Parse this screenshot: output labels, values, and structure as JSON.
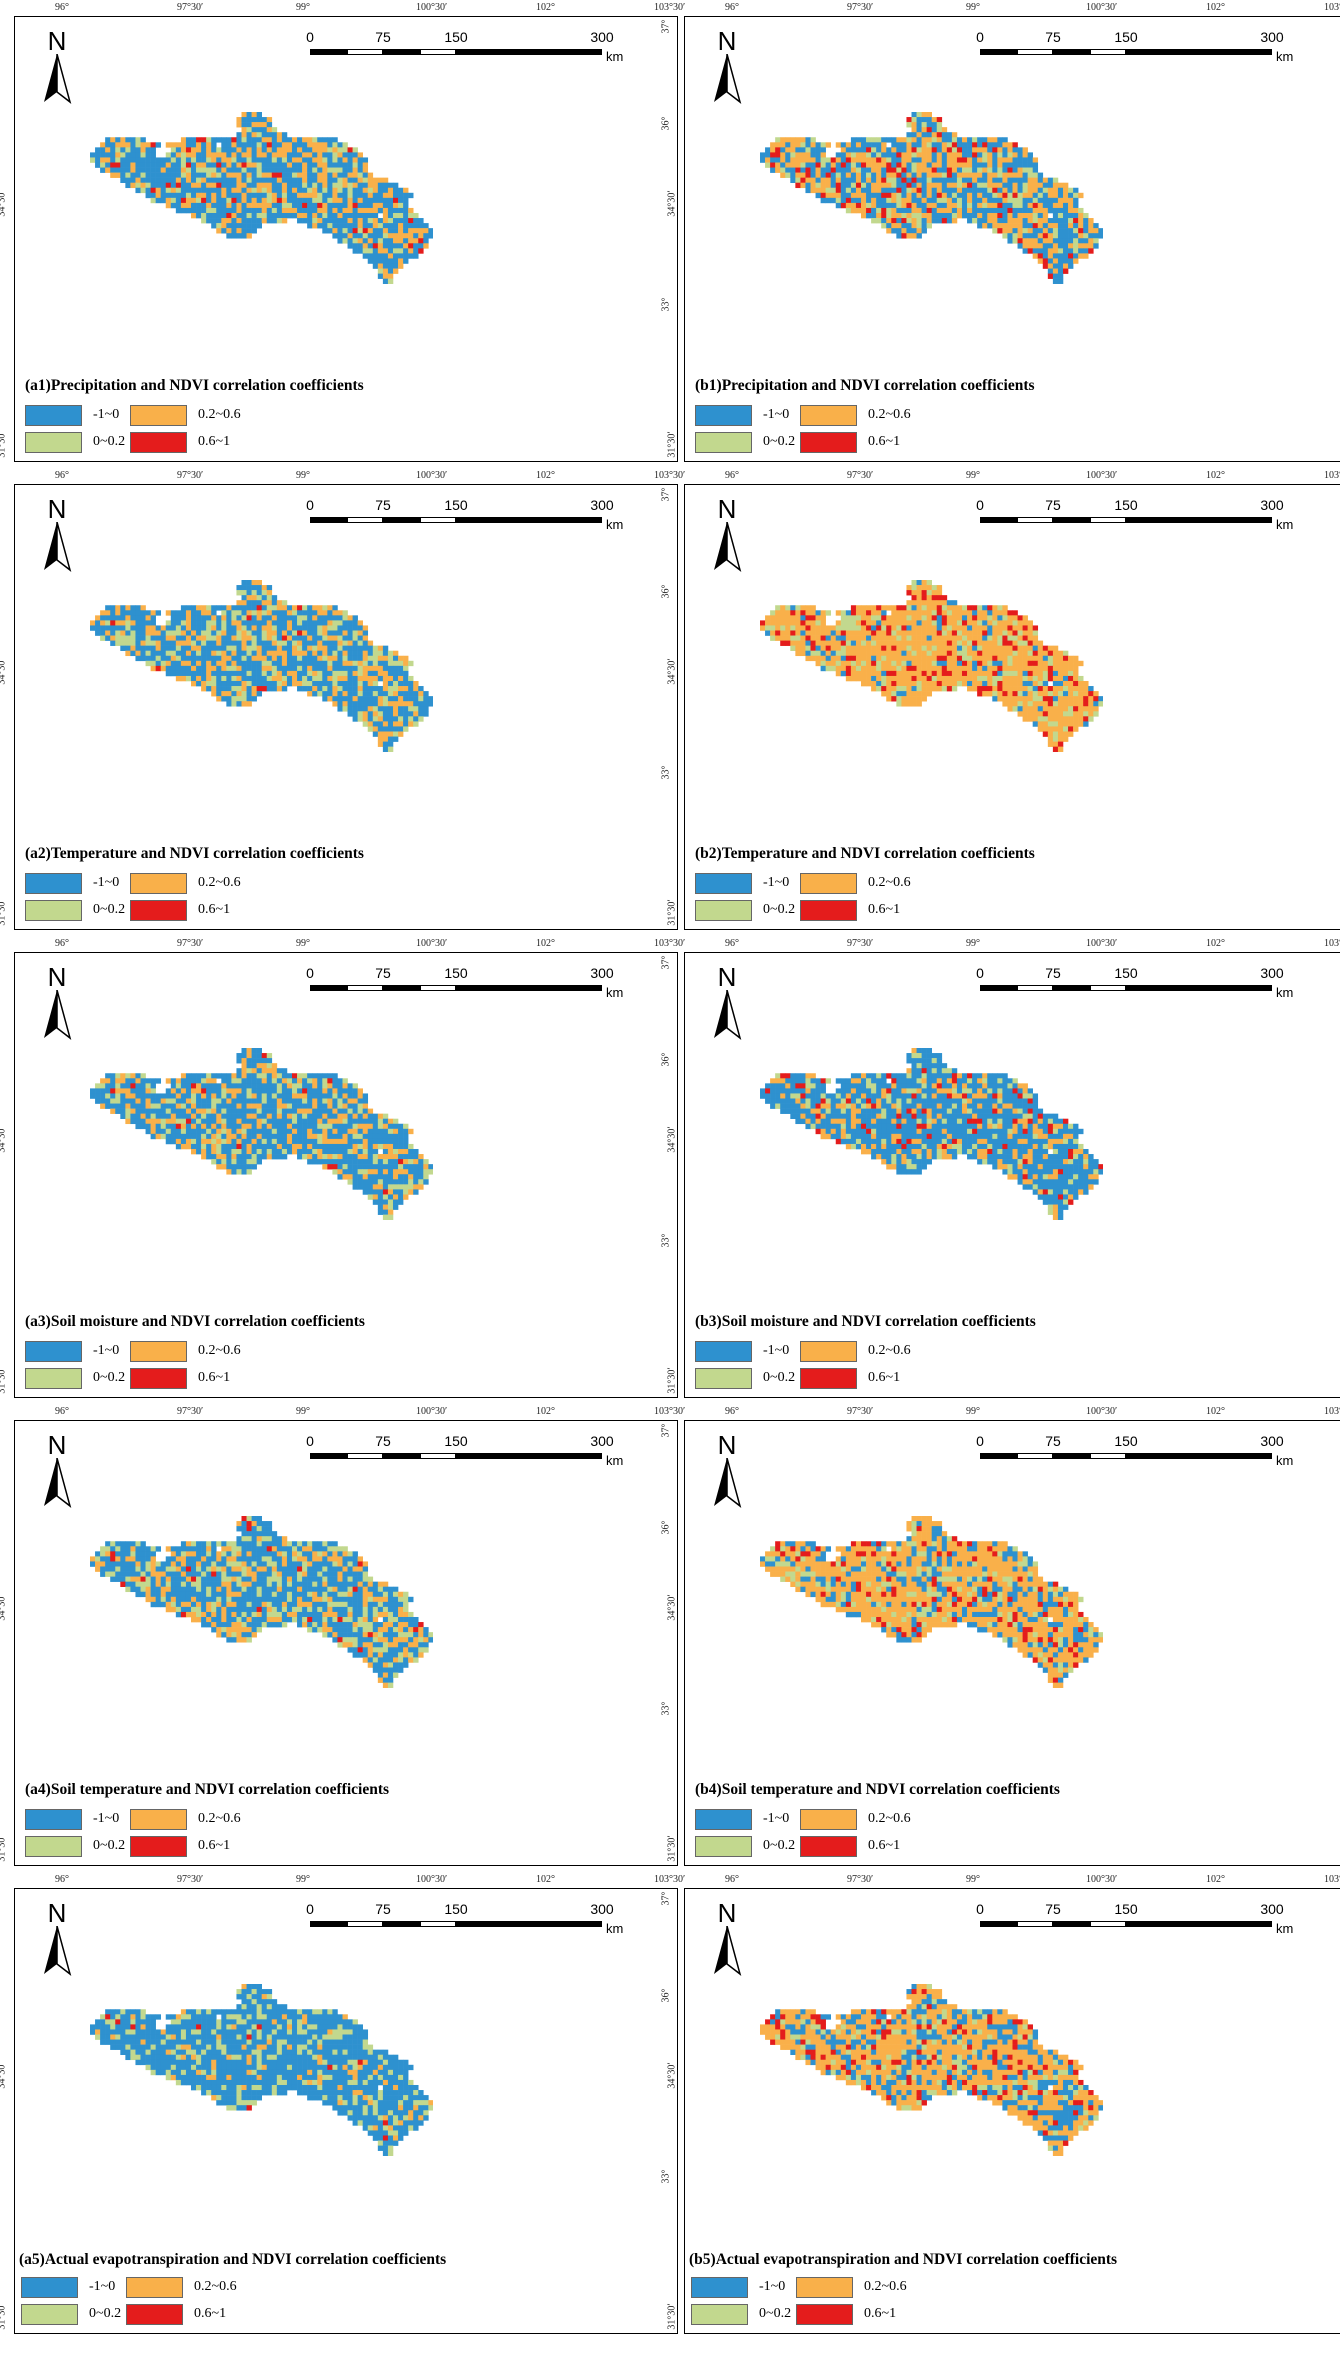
{
  "lon_ticks": [
    "96°",
    "97°30′",
    "99°",
    "100°30′",
    "102°",
    "103°30′"
  ],
  "lat_ticks": [
    "37°",
    "36°",
    "34°30′",
    "33°",
    "31°30′"
  ],
  "north_label": "N",
  "scale": {
    "ticks": [
      "0",
      "75",
      "150",
      "300"
    ],
    "tick_km": [
      0,
      75,
      150,
      300
    ],
    "unit": "km"
  },
  "legend": [
    {
      "label": "-1~0",
      "color": "#2e91cf",
      "range": [
        -1,
        0
      ]
    },
    {
      "label": "0.2~0.6",
      "color": "#f9b04a",
      "range": [
        0.2,
        0.6
      ]
    },
    {
      "label": "0~0.2",
      "color": "#c2d88e",
      "range": [
        0,
        0.2
      ]
    },
    {
      "label": "0.6~1",
      "color": "#e41c1c",
      "range": [
        0.6,
        1
      ]
    }
  ],
  "panels": [
    {
      "id": "a1",
      "caption": "(a1)Precipitation and NDVI correlation coefficients",
      "class_shares": [
        0.55,
        0.3,
        0.13,
        0.02
      ]
    },
    {
      "id": "b1",
      "caption": "(b1)Precipitation and NDVI correlation coefficients",
      "class_shares": [
        0.42,
        0.37,
        0.13,
        0.08
      ]
    },
    {
      "id": "a2",
      "caption": "(a2)Temperature and NDVI correlation coefficients",
      "class_shares": [
        0.55,
        0.25,
        0.19,
        0.01
      ]
    },
    {
      "id": "b2",
      "caption": "(b2)Temperature and NDVI correlation coefficients",
      "class_shares": [
        0.08,
        0.65,
        0.15,
        0.12
      ]
    },
    {
      "id": "a3",
      "caption": "(a3)Soil moisture and NDVI correlation coefficients",
      "class_shares": [
        0.6,
        0.22,
        0.16,
        0.02
      ]
    },
    {
      "id": "b3",
      "caption": "(b3)Soil moisture and NDVI correlation coefficients",
      "class_shares": [
        0.6,
        0.22,
        0.12,
        0.06
      ]
    },
    {
      "id": "a4",
      "caption": "(a4)Soil temperature and NDVI correlation coefficients",
      "class_shares": [
        0.55,
        0.22,
        0.21,
        0.02
      ]
    },
    {
      "id": "b4",
      "caption": "(b4)Soil temperature and NDVI correlation coefficients",
      "class_shares": [
        0.2,
        0.58,
        0.12,
        0.1
      ]
    },
    {
      "id": "a5",
      "caption": "(a5)Actual evapotranspiration and NDVI correlation coefficients",
      "class_shares": [
        0.72,
        0.08,
        0.19,
        0.01
      ]
    },
    {
      "id": "b5",
      "caption": "(b5)Actual evapotranspiration and NDVI correlation coefficients",
      "class_shares": [
        0.28,
        0.52,
        0.1,
        0.1
      ]
    }
  ]
}
